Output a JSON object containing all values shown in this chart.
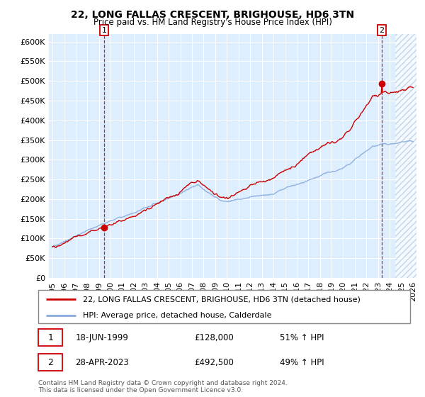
{
  "title": "22, LONG FALLAS CRESCENT, BRIGHOUSE, HD6 3TN",
  "subtitle": "Price paid vs. HM Land Registry's House Price Index (HPI)",
  "ylim": [
    0,
    620000
  ],
  "yticks": [
    0,
    50000,
    100000,
    150000,
    200000,
    250000,
    300000,
    350000,
    400000,
    450000,
    500000,
    550000,
    600000
  ],
  "ytick_labels": [
    "£0",
    "£50K",
    "£100K",
    "£150K",
    "£200K",
    "£250K",
    "£300K",
    "£350K",
    "£400K",
    "£450K",
    "£500K",
    "£550K",
    "£600K"
  ],
  "xlabel_years": [
    "1995",
    "1996",
    "1997",
    "1998",
    "1999",
    "2000",
    "2001",
    "2002",
    "2003",
    "2004",
    "2005",
    "2006",
    "2007",
    "2008",
    "2009",
    "2010",
    "2011",
    "2012",
    "2013",
    "2014",
    "2015",
    "2016",
    "2017",
    "2018",
    "2019",
    "2020",
    "2021",
    "2022",
    "2023",
    "2024",
    "2025",
    "2026"
  ],
  "sale1_year": 1999.46,
  "sale1_price": 128000,
  "sale2_year": 2023.32,
  "sale2_price": 492500,
  "legend_line1": "22, LONG FALLAS CRESCENT, BRIGHOUSE, HD6 3TN (detached house)",
  "legend_line2": "HPI: Average price, detached house, Calderdale",
  "annotation1_date": "18-JUN-1999",
  "annotation1_price": "£128,000",
  "annotation1_hpi": "51% ↑ HPI",
  "annotation2_date": "28-APR-2023",
  "annotation2_price": "£492,500",
  "annotation2_hpi": "49% ↑ HPI",
  "footnote1": "Contains HM Land Registry data © Crown copyright and database right 2024.",
  "footnote2": "This data is licensed under the Open Government Licence v3.0.",
  "red_line_color": "#cc0000",
  "blue_line_color": "#88aadd",
  "bg_color": "#ddeeff",
  "hatch_region_start": 2024.5,
  "xlim_left": 1994.7,
  "xlim_right": 2026.3
}
